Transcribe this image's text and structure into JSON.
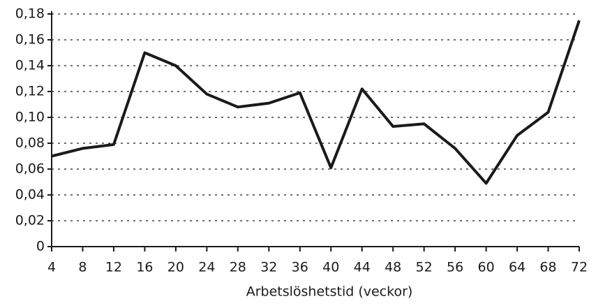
{
  "chart_data": {
    "type": "line",
    "x_label": "Arbetslöshetstid (veckor)",
    "x": [
      4,
      8,
      12,
      16,
      20,
      24,
      28,
      32,
      36,
      40,
      44,
      48,
      52,
      56,
      60,
      64,
      68,
      72
    ],
    "series": [
      {
        "color": "#1a1a1a",
        "values": [
          0.07,
          0.076,
          0.079,
          0.15,
          0.14,
          0.118,
          0.108,
          0.111,
          0.119,
          0.061,
          0.122,
          0.093,
          0.095,
          0.076,
          0.049,
          0.086,
          0.104,
          0.175
        ]
      }
    ],
    "xlim": [
      4,
      72
    ],
    "xticks": [
      4,
      8,
      12,
      16,
      20,
      24,
      28,
      32,
      36,
      40,
      44,
      48,
      52,
      56,
      60,
      64,
      68,
      72
    ],
    "ylim": [
      0,
      0.18
    ],
    "yticks": [
      0,
      {
        "value": 0.02,
        "label": "0,02"
      },
      {
        "value": 0.04,
        "label": "0,04"
      },
      {
        "value": 0.06,
        "label": "0,06"
      },
      {
        "value": 0.08,
        "label": "0,08"
      },
      {
        "value": 0.1,
        "label": "0,10"
      },
      {
        "value": 0.12,
        "label": "0,12"
      },
      {
        "value": 0.14,
        "label": "0,14"
      },
      {
        "value": 0.16,
        "label": "0,16"
      },
      {
        "value": 0.18,
        "label": "0,18"
      }
    ],
    "grid": true
  }
}
